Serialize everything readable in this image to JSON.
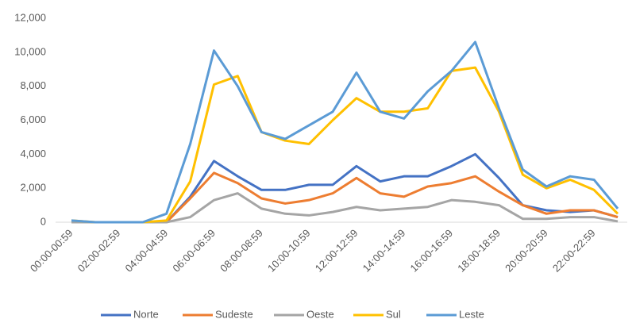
{
  "chart_data": {
    "type": "line",
    "categories": [
      "00:00-00:59",
      null,
      "02:00-02:59",
      null,
      "04:00-04:59",
      null,
      "06:00-06:59",
      null,
      "08:00-08:59",
      null,
      "10:00-10:59",
      null,
      "12:00-12:59",
      null,
      "14:00-14:59",
      null,
      "16:00-16:59",
      null,
      "18:00-18:59",
      null,
      "20:00-20:59",
      null,
      "22:00-22:59",
      null
    ],
    "series": [
      {
        "name": "Norte",
        "color": "#4472c4",
        "values": [
          0,
          0,
          0,
          0,
          0,
          1500,
          3600,
          2700,
          1900,
          1900,
          2200,
          2200,
          3300,
          2400,
          2700,
          2700,
          3300,
          4000,
          2600,
          1000,
          700,
          600,
          700,
          300
        ]
      },
      {
        "name": "Sudeste",
        "color": "#ed7d31",
        "values": [
          0,
          0,
          0,
          0,
          0,
          1400,
          2900,
          2300,
          1400,
          1100,
          1300,
          1700,
          2600,
          1700,
          1500,
          2100,
          2300,
          2700,
          1800,
          1000,
          500,
          700,
          700,
          300
        ]
      },
      {
        "name": "Oeste",
        "color": "#a5a5a5",
        "values": [
          0,
          0,
          0,
          0,
          0,
          300,
          1300,
          1700,
          800,
          500,
          400,
          600,
          900,
          700,
          800,
          900,
          1300,
          1200,
          1000,
          200,
          200,
          300,
          300,
          50
        ]
      },
      {
        "name": "Sul",
        "color": "#ffc000",
        "values": [
          100,
          0,
          0,
          0,
          100,
          2400,
          8100,
          8600,
          5300,
          4800,
          4600,
          6000,
          7300,
          6500,
          6500,
          6700,
          8900,
          9100,
          6500,
          2800,
          2000,
          2500,
          1900,
          500
        ]
      },
      {
        "name": "Leste",
        "color": "#5b9bd5",
        "values": [
          100,
          0,
          0,
          0,
          500,
          4600,
          10100,
          8000,
          5300,
          4900,
          5700,
          6500,
          8800,
          6500,
          6100,
          7700,
          8900,
          10600,
          6700,
          3100,
          2100,
          2700,
          2500,
          800
        ]
      }
    ],
    "ylim": [
      0,
      12000
    ],
    "yticks": [
      0,
      {
        "value": 2000,
        "label": "2,000"
      },
      {
        "value": 4000,
        "label": "4,000"
      },
      {
        "value": 6000,
        "label": "6,000"
      },
      {
        "value": 8000,
        "label": "8,000"
      },
      {
        "value": 10000,
        "label": "10,000"
      },
      {
        "value": 12000,
        "label": "12,000"
      }
    ],
    "grid": false,
    "legend": "bottom"
  }
}
